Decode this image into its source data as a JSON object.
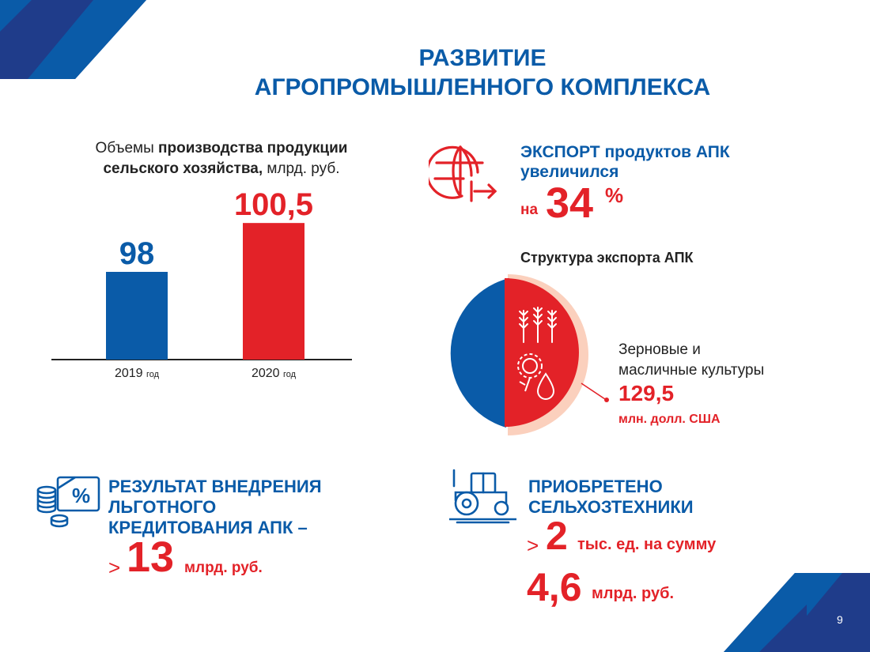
{
  "colors": {
    "blue": "#0a5ba8",
    "navy": "#1f3c8a",
    "red": "#e32228",
    "peach": "#fbd0bd"
  },
  "title": {
    "line1": "РАЗВИТИЕ",
    "line2": "АГРОПРОМЫШЛЕННОГО КОМПЛЕКСА"
  },
  "production": {
    "caption_prefix": "Объемы ",
    "caption_bold_1": "производства продукции",
    "caption_bold_2": "сельского хозяйства,",
    "caption_suffix": " млрд. руб."
  },
  "chart_data": {
    "type": "bar",
    "categories": [
      "2019",
      "2020"
    ],
    "category_suffix": "год",
    "values": [
      98,
      100.5
    ],
    "value_labels": [
      "98",
      "100,5"
    ],
    "colors": [
      "#0a5ba8",
      "#e32228"
    ]
  },
  "export": {
    "icon": "globe-arrow-icon",
    "heading_line1": "ЭКСПОРТ продуктов АПК",
    "heading_line2": "увеличился",
    "prefix": "на",
    "value": "34",
    "unit": "%"
  },
  "structure": {
    "title": "Структура экспорта АПК",
    "pie": {
      "highlighted_share": 0.5,
      "icons": [
        "wheat-icon",
        "sunflower-icon",
        "oil-drop-icon"
      ]
    },
    "label_line1": "Зерновые и",
    "label_line2": "масличные культуры",
    "value": "129,5",
    "unit": "млн. долл. США"
  },
  "credit": {
    "icon": "coins-percent-icon",
    "heading_line1": "РЕЗУЛЬТАТ ВНЕДРЕНИЯ",
    "heading_line2": "ЛЬГОТНОГО",
    "heading_line3": "КРЕДИТОВАНИЯ АПК –",
    "gt": ">",
    "value": "13",
    "unit": "млрд. руб."
  },
  "machinery": {
    "icon": "tractor-icon",
    "heading_line1": "ПРИОБРЕТЕНО",
    "heading_line2": "СЕЛЬХОЗТЕХНИКИ",
    "gt": ">",
    "value": "2",
    "text": "тыс. ед. на сумму",
    "sum_value": "4,6",
    "sum_unit": "млрд. руб."
  },
  "page_number": "9"
}
